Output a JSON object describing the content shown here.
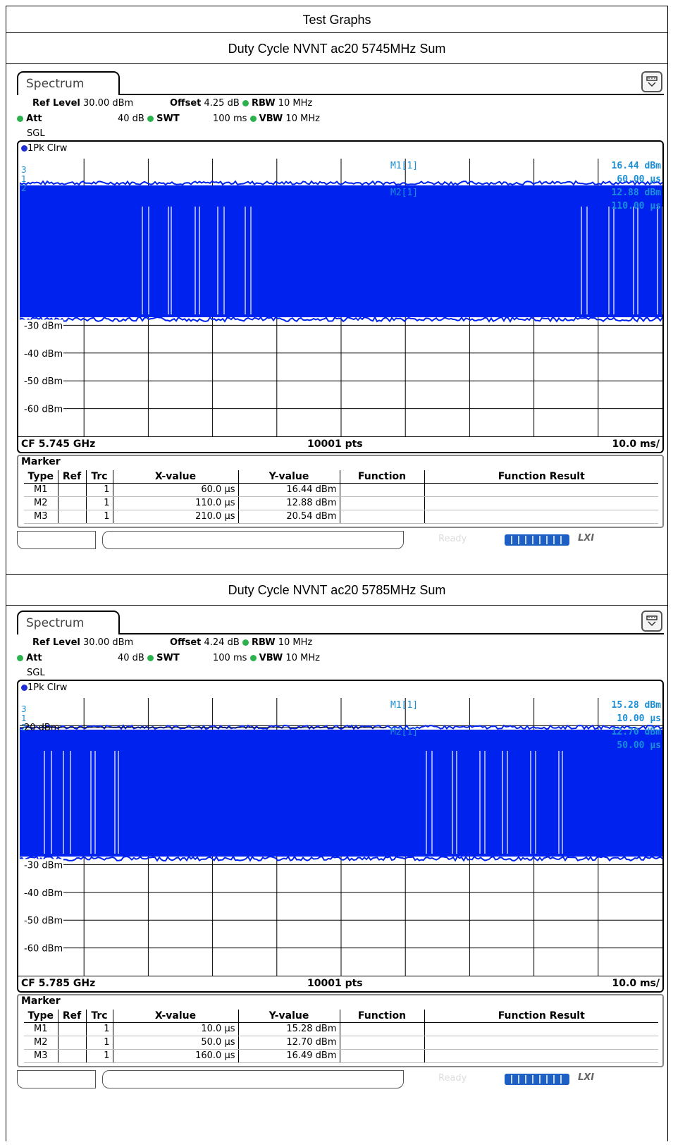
{
  "report": {
    "title": "Test Graphs"
  },
  "graphs": [
    {
      "caption": "Duty Cycle NVNT ac20 5745MHz Sum",
      "spectrum": {
        "tab_label": "Spectrum",
        "ref_level_label": "Ref Level",
        "ref_level_value": "30.00 dBm",
        "offset_label": "Offset",
        "offset_value": "4.25 dB",
        "rbw_label": "RBW",
        "rbw_value": "10 MHz",
        "att_label": "Att",
        "att_value": "40 dB",
        "swt_label": "SWT",
        "swt_value": "100 ms",
        "vbw_label": "VBW",
        "vbw_value": "10 MHz",
        "mode": "SGL",
        "trace_label": "1Pk Clrw",
        "y_ticks": [
          "-30 dBm",
          "-40 dBm",
          "-50 dBm",
          "-60 dBm"
        ],
        "ref_line_label": "",
        "marker_readouts": [
          {
            "name": "M1[1]",
            "level": "16.44 dBm",
            "time": "60.00 µs"
          },
          {
            "name": "M2[1]",
            "level": "12.88 dBm",
            "time": "110.00 µs"
          }
        ],
        "marker_flags": [
          "3",
          "1",
          "2"
        ],
        "center_freq": "CF 5.745 GHz",
        "points": "10001 pts",
        "time_div": "10.0 ms/",
        "trace_color": "#0022ee",
        "readout_color": "#1a8fd8"
      },
      "marker_table": {
        "title": "Marker",
        "headers": [
          "Type",
          "Ref",
          "Trc",
          "X-value",
          "Y-value",
          "Function",
          "Function Result"
        ],
        "rows": [
          {
            "type": "M1",
            "ref": "",
            "trc": "1",
            "x": "60.0 µs",
            "y": "16.44 dBm",
            "function": "",
            "result": ""
          },
          {
            "type": "M2",
            "ref": "",
            "trc": "1",
            "x": "110.0 µs",
            "y": "12.88 dBm",
            "function": "",
            "result": ""
          },
          {
            "type": "M3",
            "ref": "",
            "trc": "1",
            "x": "210.0 µs",
            "y": "20.54 dBm",
            "function": "",
            "result": ""
          }
        ]
      },
      "status": {
        "ready": "Ready",
        "lxi": "LXI"
      }
    },
    {
      "caption": "Duty Cycle NVNT ac20 5785MHz Sum",
      "spectrum": {
        "tab_label": "Spectrum",
        "ref_level_label": "Ref Level",
        "ref_level_value": "30.00 dBm",
        "offset_label": "Offset",
        "offset_value": "4.24 dB",
        "rbw_label": "RBW",
        "rbw_value": "10 MHz",
        "att_label": "Att",
        "att_value": "40 dB",
        "swt_label": "SWT",
        "swt_value": "100 ms",
        "vbw_label": "VBW",
        "vbw_value": "10 MHz",
        "mode": "SGL",
        "trace_label": "1Pk Clrw",
        "y_ticks": [
          "-30 dBm",
          "-40 dBm",
          "-50 dBm",
          "-60 dBm"
        ],
        "ref_line_label": "20 dBm",
        "marker_readouts": [
          {
            "name": "M1[1]",
            "level": "15.28 dBm",
            "time": "10.00 µs"
          },
          {
            "name": "M2[1]",
            "level": "12.70 dBm",
            "time": "50.00 µs"
          }
        ],
        "marker_flags": [
          "3",
          "1",
          "2"
        ],
        "center_freq": "CF 5.785 GHz",
        "points": "10001 pts",
        "time_div": "10.0 ms/",
        "trace_color": "#0022ee",
        "readout_color": "#1a8fd8"
      },
      "marker_table": {
        "title": "Marker",
        "headers": [
          "Type",
          "Ref",
          "Trc",
          "X-value",
          "Y-value",
          "Function",
          "Function Result"
        ],
        "rows": [
          {
            "type": "M1",
            "ref": "",
            "trc": "1",
            "x": "10.0 µs",
            "y": "15.28 dBm",
            "function": "",
            "result": ""
          },
          {
            "type": "M2",
            "ref": "",
            "trc": "1",
            "x": "50.0 µs",
            "y": "12.70 dBm",
            "function": "",
            "result": ""
          },
          {
            "type": "M3",
            "ref": "",
            "trc": "1",
            "x": "160.0 µs",
            "y": "16.49 dBm",
            "function": "",
            "result": ""
          }
        ]
      },
      "status": {
        "ready": "Ready",
        "lxi": "LXI"
      }
    }
  ]
}
